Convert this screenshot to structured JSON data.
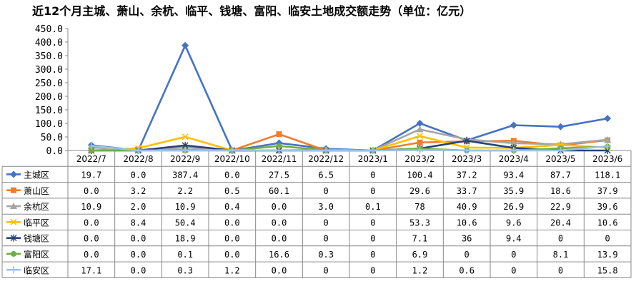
{
  "chart_data": {
    "type": "line",
    "title": "近12个月主城、萧山、余杭、临平、钱塘、富阳、临安土地成交额走势（单位：亿元）",
    "categories": [
      "2022/7",
      "2022/8",
      "2022/9",
      "2022/10",
      "2022/11",
      "2022/12",
      "2023/1",
      "2023/2",
      "2023/3",
      "2023/4",
      "2023/5",
      "2023/6"
    ],
    "ylim": [
      0,
      450
    ],
    "yticks": [
      "0.0",
      "50.0",
      "100.0",
      "150.0",
      "200.0",
      "250.0",
      "300.0",
      "350.0",
      "400.0",
      "450.0"
    ],
    "legend": "table-left",
    "series": [
      {
        "name": "主城区",
        "color": "#4472C4",
        "marker": "diamond",
        "values": [
          19.7,
          0.0,
          387.4,
          0.0,
          27.5,
          6.5,
          0,
          100.4,
          37.2,
          93.4,
          87.7,
          118.1
        ],
        "labels": [
          "19.7",
          "0.0",
          "387.4",
          "0.0",
          "27.5",
          "6.5",
          "0",
          "100.4",
          "37.2",
          "93.4",
          "87.7",
          "118.1"
        ]
      },
      {
        "name": "萧山区",
        "color": "#ED7D31",
        "marker": "square",
        "values": [
          0.0,
          3.2,
          2.2,
          0.5,
          60.1,
          0,
          0,
          29.6,
          33.7,
          35.9,
          18.6,
          37.9
        ],
        "labels": [
          "0.0",
          "3.2",
          "2.2",
          "0.5",
          "60.1",
          "0",
          "0",
          "29.6",
          "33.7",
          "35.9",
          "18.6",
          "37.9"
        ]
      },
      {
        "name": "余杭区",
        "color": "#A5A5A5",
        "marker": "triangle",
        "values": [
          10.9,
          2.0,
          10.9,
          0.4,
          0.0,
          3.0,
          0.1,
          78,
          40.9,
          26.9,
          22.9,
          39.6
        ],
        "labels": [
          "10.9",
          "2.0",
          "10.9",
          "0.4",
          "0.0",
          "3.0",
          "0.1",
          "78",
          "40.9",
          "26.9",
          "22.9",
          "39.6"
        ]
      },
      {
        "name": "临平区",
        "color": "#FFC000",
        "marker": "x",
        "values": [
          0.0,
          8.4,
          50.4,
          0.0,
          0.0,
          0,
          0,
          53.3,
          10.6,
          9.6,
          20.4,
          10.6
        ],
        "labels": [
          "0.0",
          "8.4",
          "50.4",
          "0.0",
          "0.0",
          "0",
          "0",
          "53.3",
          "10.6",
          "9.6",
          "20.4",
          "10.6"
        ]
      },
      {
        "name": "钱塘区",
        "color": "#264478",
        "marker": "star",
        "values": [
          0.0,
          0.0,
          18.9,
          0.0,
          0.0,
          0,
          0,
          7.1,
          36,
          9.4,
          0,
          0
        ],
        "labels": [
          "0.0",
          "0.0",
          "18.9",
          "0.0",
          "0.0",
          "0",
          "0",
          "7.1",
          "36",
          "9.4",
          "0",
          "0"
        ]
      },
      {
        "name": "富阳区",
        "color": "#70AD47",
        "marker": "circle",
        "values": [
          0.0,
          0.0,
          0.1,
          0.0,
          16.6,
          0.3,
          0,
          6.9,
          0,
          0,
          8.1,
          13.9
        ],
        "labels": [
          "0.0",
          "0.0",
          "0.1",
          "0.0",
          "16.6",
          "0.3",
          "0",
          "6.9",
          "0",
          "0",
          "8.1",
          "13.9"
        ]
      },
      {
        "name": "临安区",
        "color": "#9DC3E6",
        "marker": "plus",
        "values": [
          17.1,
          0.0,
          0.3,
          1.2,
          0.0,
          0,
          0,
          1.2,
          0.6,
          0,
          0,
          15.8
        ],
        "labels": [
          "17.1",
          "0.0",
          "0.3",
          "1.2",
          "0.0",
          "0",
          "0",
          "1.2",
          "0.6",
          "0",
          "0",
          "15.8"
        ]
      }
    ]
  }
}
